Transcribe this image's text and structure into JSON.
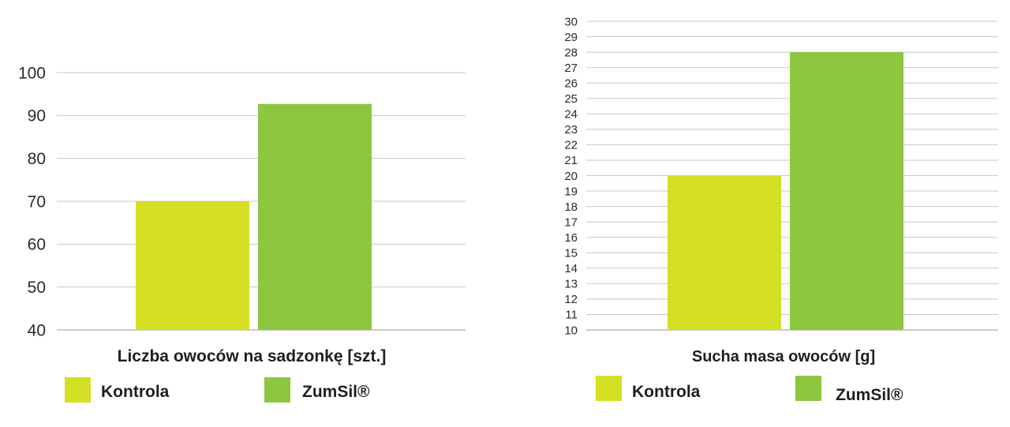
{
  "chart_data": [
    {
      "type": "bar",
      "categories": [
        "Kontrola",
        "ZumSil®"
      ],
      "values": [
        70,
        92.7
      ],
      "title": "",
      "xlabel": "Liczba owoców na sadzonkę [szt.]",
      "ylabel": "",
      "ylim": [
        40,
        100
      ],
      "yticks": [
        "40",
        "50",
        "60",
        "70",
        "80",
        "90",
        "100"
      ],
      "grid": true,
      "legend": [
        "Kontrola",
        "ZumSil®"
      ],
      "legend_position": "bottom",
      "colors": [
        "#d5df23",
        "#8dc63f"
      ]
    },
    {
      "type": "bar",
      "categories": [
        "Kontrola",
        "ZumSil®"
      ],
      "values": [
        20,
        28
      ],
      "title": "",
      "xlabel": "Sucha masa owoców [g]",
      "ylabel": "",
      "ylim": [
        10,
        30
      ],
      "yticks": [
        "10",
        "11",
        "12",
        "13",
        "14",
        "15",
        "16",
        "17",
        "18",
        "19",
        "20",
        "21",
        "22",
        "23",
        "24",
        "25",
        "26",
        "27",
        "28",
        "29",
        "30"
      ],
      "grid": true,
      "legend": [
        "Kontrola",
        "ZumSil®"
      ],
      "legend_position": "bottom",
      "colors": [
        "#d5df23",
        "#8dc63f"
      ]
    }
  ]
}
